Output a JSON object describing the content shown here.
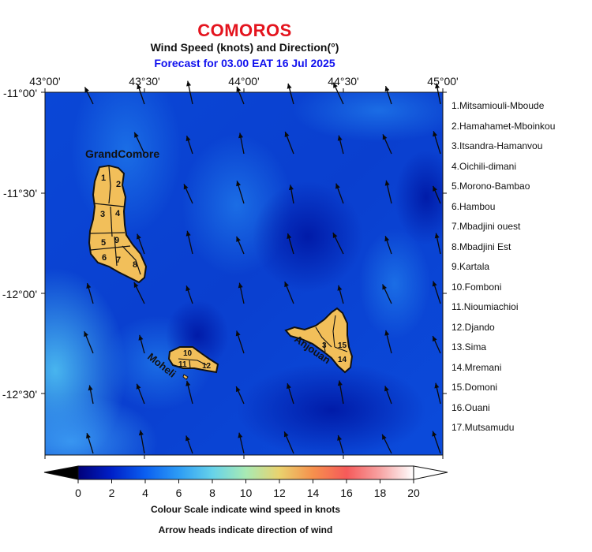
{
  "header": {
    "title": "COMOROS",
    "subtitle": "Wind Speed (knots) and Direction(°)",
    "forecast": "Forecast for  03.00 EAT 16 Jul 2025"
  },
  "axes": {
    "lon_labels": [
      "43°00'",
      "43°30'",
      "44°00'",
      "44°30'",
      "45°00'"
    ],
    "lat_labels": [
      "-11°00'",
      "-11°30'",
      "-12°00'",
      "-12°30'"
    ]
  },
  "islands": {
    "grand_comore": "GrandComore",
    "moheli": "Moheli",
    "anjouan": "Anjouan"
  },
  "district_numbers": {
    "grand_comore": [
      "1",
      "2",
      "3",
      "4",
      "5",
      "6",
      "7",
      "8",
      "9"
    ],
    "moheli": [
      "10",
      "11",
      "12"
    ],
    "anjouan": [
      "3",
      "14",
      "15"
    ]
  },
  "regions": [
    "1.Mitsamiouli-Mboude",
    "2.Hamahamet-Mboinkou",
    "3.Itsandra-Hamanvou",
    "4.Oichili-dimani",
    "5.Morono-Bambao",
    "6.Hambou",
    "7.Mbadjini ouest",
    "8.Mbadjini Est",
    "9.Kartala",
    "10.Fomboni",
    "11.Nioumiachioi",
    "12.Djando",
    "13.Sima",
    "14.Mremani",
    "15.Domoni",
    "16.Ouani",
    "17.Mutsamudu"
  ],
  "colorbar": {
    "ticks": [
      "0",
      "2",
      "4",
      "6",
      "8",
      "10",
      "12",
      "14",
      "16",
      "18",
      "20"
    ],
    "range": [
      0,
      20
    ],
    "caption1": "Colour Scale indicate wind speed in knots",
    "caption2": "Arrow heads indicate direction of wind",
    "colors": [
      "#00007a",
      "#0020c8",
      "#0b5ff0",
      "#2d9cf5",
      "#66d2ea",
      "#a8eab4",
      "#ead26e",
      "#f6904d",
      "#f55a5a",
      "#f7a3a3",
      "#ffffff"
    ]
  },
  "colors": {
    "title": "#e4141e",
    "forecast": "#1010ee",
    "land": "#f2bf5a",
    "sea_base": "#0b46d8"
  },
  "wind": {
    "units": "knots",
    "prevailing_direction": "from south-southeast",
    "typical_speed_range": [
      2,
      7
    ]
  }
}
